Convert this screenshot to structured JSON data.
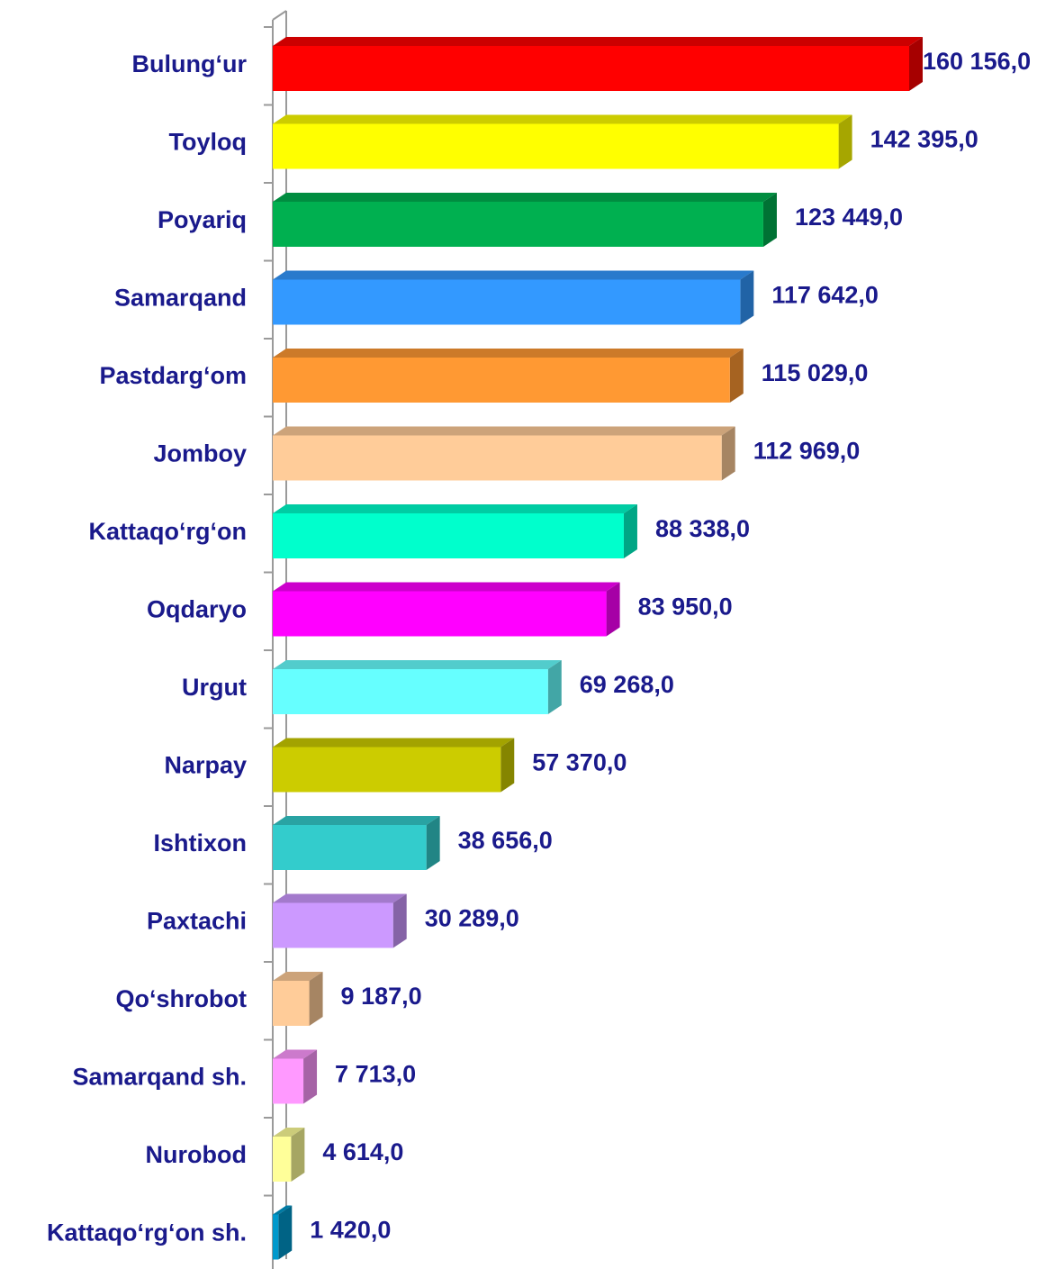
{
  "chart_data": {
    "type": "bar",
    "orientation": "horizontal",
    "categories": [
      "Bulung‘ur",
      "Toyloq",
      "Poyariq",
      "Samarqand",
      "Pastdarg‘om",
      "Jomboy",
      "Kattaqo‘rg‘on",
      "Oqdaryo",
      "Urgut",
      "Narpay",
      "Ishtixon",
      "Paxtachi",
      "Qo‘shrobot",
      "Samarqand sh.",
      "Nurobod",
      "Kattaqo‘rg‘on sh."
    ],
    "values": [
      160156,
      142395,
      123449,
      117642,
      115029,
      112969,
      88338,
      83950,
      69268,
      57370,
      38656,
      30289,
      9187,
      7713,
      4614,
      1420
    ],
    "value_labels": [
      "160 156,0",
      "142 395,0",
      "123 449,0",
      "117 642,0",
      "115 029,0",
      "112 969,0",
      "88 338,0",
      "83 950,0",
      "69 268,0",
      "57 370,0",
      "38 656,0",
      "30 289,0",
      "9 187,0",
      "7 713,0",
      "4 614,0",
      "1 420,0"
    ],
    "colors": [
      "#ff0000",
      "#ffff00",
      "#00b050",
      "#3399ff",
      "#ff9933",
      "#ffcc99",
      "#00ffcc",
      "#ff00ff",
      "#66ffff",
      "#cccc00",
      "#33cccc",
      "#cc99ff",
      "#ffcc99",
      "#ff99ff",
      "#ffff99",
      "#0099cc"
    ]
  }
}
